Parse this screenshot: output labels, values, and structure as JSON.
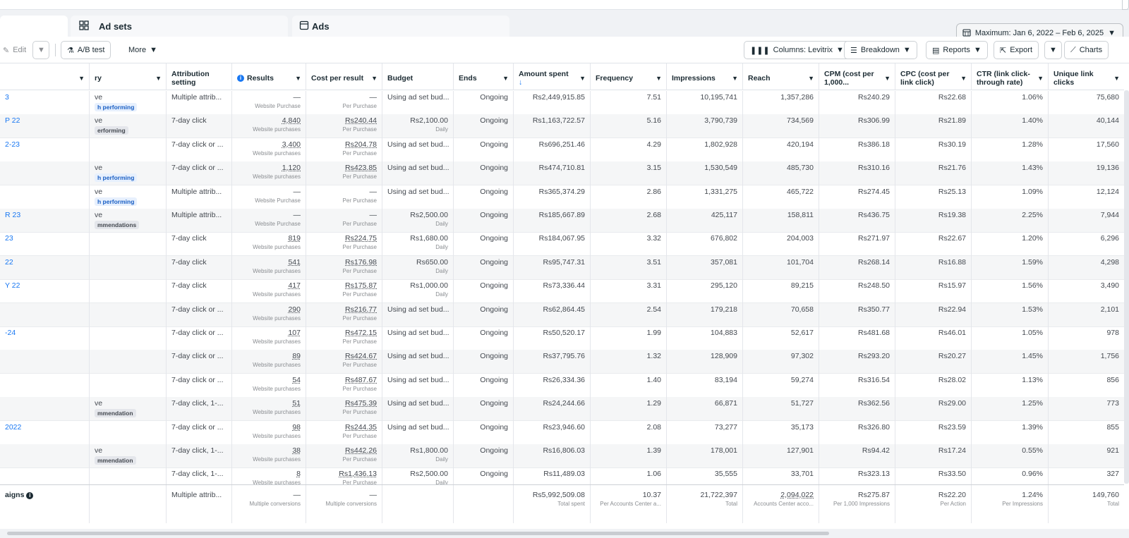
{
  "tabs": {
    "first": "",
    "adsets": "Ad sets",
    "adsets_icon": "grid-icon",
    "ads": "Ads",
    "ads_icon": "ad-square-icon"
  },
  "date_range": "Maximum: Jan 6, 2022 – Feb 6, 2025",
  "toolbar": {
    "edit": "Edit",
    "ab_test": "A/B test",
    "more": "More",
    "columns": "Columns: Levitrix",
    "breakdown": "Breakdown",
    "reports": "Reports",
    "export": "Export",
    "charts": "Charts"
  },
  "columns": {
    "name": "",
    "delivery": "ry",
    "attribution": "Attribution setting",
    "results": "Results",
    "cost_per_result": "Cost per result",
    "budget": "Budget",
    "ends": "Ends",
    "amount_spent": "Amount spent",
    "amount_spent_sort": "↓",
    "frequency": "Frequency",
    "impressions": "Impressions",
    "reach": "Reach",
    "cpm": "CPM (cost per 1,000...",
    "cpc": "CPC (cost per link click)",
    "ctr": "CTR (link click-through rate)",
    "unique_clicks": "Unique link clicks"
  },
  "rows": [
    {
      "name": "3",
      "deliv": "ve",
      "pill": "h performing",
      "pill_color": "blue",
      "attr": "Multiple attrib...",
      "res": "—",
      "res_sub": "Website Purchase",
      "cpr": "—",
      "cpr_sub": "Per Purchase",
      "budget": "Using ad set bud...",
      "budget_sub": "",
      "ends": "Ongoing",
      "spent": "Rs2,449,915.85",
      "freq": "7.51",
      "impr": "10,195,741",
      "reach": "1,357,286",
      "cpm": "Rs240.29",
      "cpc": "Rs22.68",
      "ctr": "1.06%",
      "clicks": "75,680"
    },
    {
      "name": "P 22",
      "deliv": "ve",
      "pill": "erforming",
      "pill_color": "grey",
      "attr": "7-day click",
      "res": "4,840",
      "res_sub": "Website purchases",
      "cpr": "Rs240.44",
      "cpr_sub": "Per Purchase",
      "budget": "Rs2,100.00",
      "budget_sub": "Daily",
      "ends": "Ongoing",
      "spent": "Rs1,163,722.57",
      "freq": "5.16",
      "impr": "3,790,739",
      "reach": "734,569",
      "cpm": "Rs306.99",
      "cpc": "Rs21.89",
      "ctr": "1.40%",
      "clicks": "40,144"
    },
    {
      "name": "2-23",
      "deliv": "",
      "pill": "",
      "pill_color": "",
      "attr": "7-day click or ...",
      "res": "3,400",
      "res_sub": "Website purchases",
      "cpr": "Rs204.78",
      "cpr_sub": "Per Purchase",
      "budget": "Using ad set bud...",
      "budget_sub": "",
      "ends": "Ongoing",
      "spent": "Rs696,251.46",
      "freq": "4.29",
      "impr": "1,802,928",
      "reach": "420,194",
      "cpm": "Rs386.18",
      "cpc": "Rs30.19",
      "ctr": "1.28%",
      "clicks": "17,560"
    },
    {
      "name": "",
      "deliv": "ve",
      "pill": "h performing",
      "pill_color": "blue",
      "attr": "7-day click or ...",
      "res": "1,120",
      "res_sub": "Website purchases",
      "cpr": "Rs423.85",
      "cpr_sub": "Per Purchase",
      "budget": "Using ad set bud...",
      "budget_sub": "",
      "ends": "Ongoing",
      "spent": "Rs474,710.81",
      "freq": "3.15",
      "impr": "1,530,549",
      "reach": "485,730",
      "cpm": "Rs310.16",
      "cpc": "Rs21.76",
      "ctr": "1.43%",
      "clicks": "19,136"
    },
    {
      "name": "",
      "deliv": "ve",
      "pill": "h performing",
      "pill_color": "blue",
      "attr": "Multiple attrib...",
      "res": "—",
      "res_sub": "Website Purchase",
      "cpr": "—",
      "cpr_sub": "Per Purchase",
      "budget": "Using ad set bud...",
      "budget_sub": "",
      "ends": "Ongoing",
      "spent": "Rs365,374.29",
      "freq": "2.86",
      "impr": "1,331,275",
      "reach": "465,722",
      "cpm": "Rs274.45",
      "cpc": "Rs25.13",
      "ctr": "1.09%",
      "clicks": "12,124"
    },
    {
      "name": "R 23",
      "deliv": "ve",
      "pill": "mmendations",
      "pill_color": "grey",
      "attr": "Multiple attrib...",
      "res": "—",
      "res_sub": "Website Purchase",
      "cpr": "—",
      "cpr_sub": "Per Purchase",
      "budget": "Rs2,500.00",
      "budget_sub": "Daily",
      "ends": "Ongoing",
      "spent": "Rs185,667.89",
      "freq": "2.68",
      "impr": "425,117",
      "reach": "158,811",
      "cpm": "Rs436.75",
      "cpc": "Rs19.38",
      "ctr": "2.25%",
      "clicks": "7,944"
    },
    {
      "name": "23",
      "deliv": "",
      "pill": "",
      "pill_color": "",
      "attr": "7-day click",
      "res": "819",
      "res_sub": "Website purchases",
      "cpr": "Rs224.75",
      "cpr_sub": "Per Purchase",
      "budget": "Rs1,680.00",
      "budget_sub": "Daily",
      "ends": "Ongoing",
      "spent": "Rs184,067.95",
      "freq": "3.32",
      "impr": "676,802",
      "reach": "204,003",
      "cpm": "Rs271.97",
      "cpc": "Rs22.67",
      "ctr": "1.20%",
      "clicks": "6,296"
    },
    {
      "name": "22",
      "deliv": "",
      "pill": "",
      "pill_color": "",
      "attr": "7-day click",
      "res": "541",
      "res_sub": "Website purchases",
      "cpr": "Rs176.98",
      "cpr_sub": "Per Purchase",
      "budget": "Rs650.00",
      "budget_sub": "Daily",
      "ends": "Ongoing",
      "spent": "Rs95,747.31",
      "freq": "3.51",
      "impr": "357,081",
      "reach": "101,704",
      "cpm": "Rs268.14",
      "cpc": "Rs16.88",
      "ctr": "1.59%",
      "clicks": "4,298"
    },
    {
      "name": "Y 22",
      "deliv": "",
      "pill": "",
      "pill_color": "",
      "attr": "7-day click",
      "res": "417",
      "res_sub": "Website purchases",
      "cpr": "Rs175.87",
      "cpr_sub": "Per Purchase",
      "budget": "Rs1,000.00",
      "budget_sub": "Daily",
      "ends": "Ongoing",
      "spent": "Rs73,336.44",
      "freq": "3.31",
      "impr": "295,120",
      "reach": "89,215",
      "cpm": "Rs248.50",
      "cpc": "Rs15.97",
      "ctr": "1.56%",
      "clicks": "3,490"
    },
    {
      "name": "",
      "deliv": "",
      "pill": "",
      "pill_color": "",
      "attr": "7-day click or ...",
      "res": "290",
      "res_sub": "Website purchases",
      "cpr": "Rs216.77",
      "cpr_sub": "Per Purchase",
      "budget": "Using ad set bud...",
      "budget_sub": "",
      "ends": "Ongoing",
      "spent": "Rs62,864.45",
      "freq": "2.54",
      "impr": "179,218",
      "reach": "70,658",
      "cpm": "Rs350.77",
      "cpc": "Rs22.94",
      "ctr": "1.53%",
      "clicks": "2,101"
    },
    {
      "name": "-24",
      "deliv": "",
      "pill": "",
      "pill_color": "",
      "attr": "7-day click or ...",
      "res": "107",
      "res_sub": "Website purchases",
      "cpr": "Rs472.15",
      "cpr_sub": "Per Purchase",
      "budget": "Using ad set bud...",
      "budget_sub": "",
      "ends": "Ongoing",
      "spent": "Rs50,520.17",
      "freq": "1.99",
      "impr": "104,883",
      "reach": "52,617",
      "cpm": "Rs481.68",
      "cpc": "Rs46.01",
      "ctr": "1.05%",
      "clicks": "978"
    },
    {
      "name": "",
      "deliv": "",
      "pill": "",
      "pill_color": "",
      "attr": "7-day click or ...",
      "res": "89",
      "res_sub": "Website purchases",
      "cpr": "Rs424.67",
      "cpr_sub": "Per Purchase",
      "budget": "Using ad set bud...",
      "budget_sub": "",
      "ends": "Ongoing",
      "spent": "Rs37,795.76",
      "freq": "1.32",
      "impr": "128,909",
      "reach": "97,302",
      "cpm": "Rs293.20",
      "cpc": "Rs20.27",
      "ctr": "1.45%",
      "clicks": "1,756"
    },
    {
      "name": "",
      "deliv": "",
      "pill": "",
      "pill_color": "",
      "attr": "7-day click or ...",
      "res": "54",
      "res_sub": "Website purchases",
      "cpr": "Rs487.67",
      "cpr_sub": "Per Purchase",
      "budget": "Using ad set bud...",
      "budget_sub": "",
      "ends": "Ongoing",
      "spent": "Rs26,334.36",
      "freq": "1.40",
      "impr": "83,194",
      "reach": "59,274",
      "cpm": "Rs316.54",
      "cpc": "Rs28.02",
      "ctr": "1.13%",
      "clicks": "856"
    },
    {
      "name": "",
      "deliv": "ve",
      "pill": "mmendation",
      "pill_color": "grey",
      "attr": "7-day click, 1-...",
      "res": "51",
      "res_sub": "Website purchases",
      "cpr": "Rs475.39",
      "cpr_sub": "Per Purchase",
      "budget": "Using ad set bud...",
      "budget_sub": "",
      "ends": "Ongoing",
      "spent": "Rs24,244.66",
      "freq": "1.29",
      "impr": "66,871",
      "reach": "51,727",
      "cpm": "Rs362.56",
      "cpc": "Rs29.00",
      "ctr": "1.25%",
      "clicks": "773"
    },
    {
      "name": "2022",
      "deliv": "",
      "pill": "",
      "pill_color": "",
      "attr": "7-day click or ...",
      "res": "98",
      "res_sub": "Website purchases",
      "cpr": "Rs244.35",
      "cpr_sub": "Per Purchase",
      "budget": "Using ad set bud...",
      "budget_sub": "",
      "ends": "Ongoing",
      "spent": "Rs23,946.60",
      "freq": "2.08",
      "impr": "73,277",
      "reach": "35,173",
      "cpm": "Rs326.80",
      "cpc": "Rs23.59",
      "ctr": "1.39%",
      "clicks": "855"
    },
    {
      "name": "",
      "deliv": "ve",
      "pill": "mmendation",
      "pill_color": "grey",
      "attr": "7-day click, 1-...",
      "res": "38",
      "res_sub": "Website purchases",
      "cpr": "Rs442.26",
      "cpr_sub": "Per Purchase",
      "budget": "Rs1,800.00",
      "budget_sub": "Daily",
      "ends": "Ongoing",
      "spent": "Rs16,806.03",
      "freq": "1.39",
      "impr": "178,001",
      "reach": "127,901",
      "cpm": "Rs94.42",
      "cpc": "Rs17.24",
      "ctr": "0.55%",
      "clicks": "921"
    },
    {
      "name": "",
      "deliv": "",
      "pill": "",
      "pill_color": "",
      "attr": "7-day click, 1-...",
      "res": "8",
      "res_sub": "Website purchases",
      "cpr": "Rs1,436.13",
      "cpr_sub": "Per Purchase",
      "budget": "Rs2,500.00",
      "budget_sub": "Daily",
      "ends": "Ongoing",
      "spent": "Rs11,489.03",
      "freq": "1.06",
      "impr": "35,555",
      "reach": "33,701",
      "cpm": "Rs323.13",
      "cpc": "Rs33.50",
      "ctr": "0.96%",
      "clicks": "327"
    }
  ],
  "totals": {
    "name": "aigns",
    "attr": "Multiple attrib...",
    "res": "—",
    "res_sub": "Multiple conversions",
    "cpr": "—",
    "cpr_sub": "Multiple conversions",
    "spent": "Rs5,992,509.08",
    "spent_sub": "Total spent",
    "freq": "10.37",
    "freq_sub": "Per Accounts Center a...",
    "impr": "21,722,397",
    "impr_sub": "Total",
    "reach": "2,094,022",
    "reach_sub": "Accounts Center acco...",
    "cpm": "Rs275.87",
    "cpm_sub": "Per 1,000 Impressions",
    "cpc": "Rs22.20",
    "cpc_sub": "Per Action",
    "ctr": "1.24%",
    "ctr_sub": "Per Impressions",
    "clicks": "149,760",
    "clicks_sub": "Total"
  },
  "colors": {
    "link": "#1877f2",
    "border": "#e4e6eb",
    "alt_row": "#f5f6f7"
  }
}
